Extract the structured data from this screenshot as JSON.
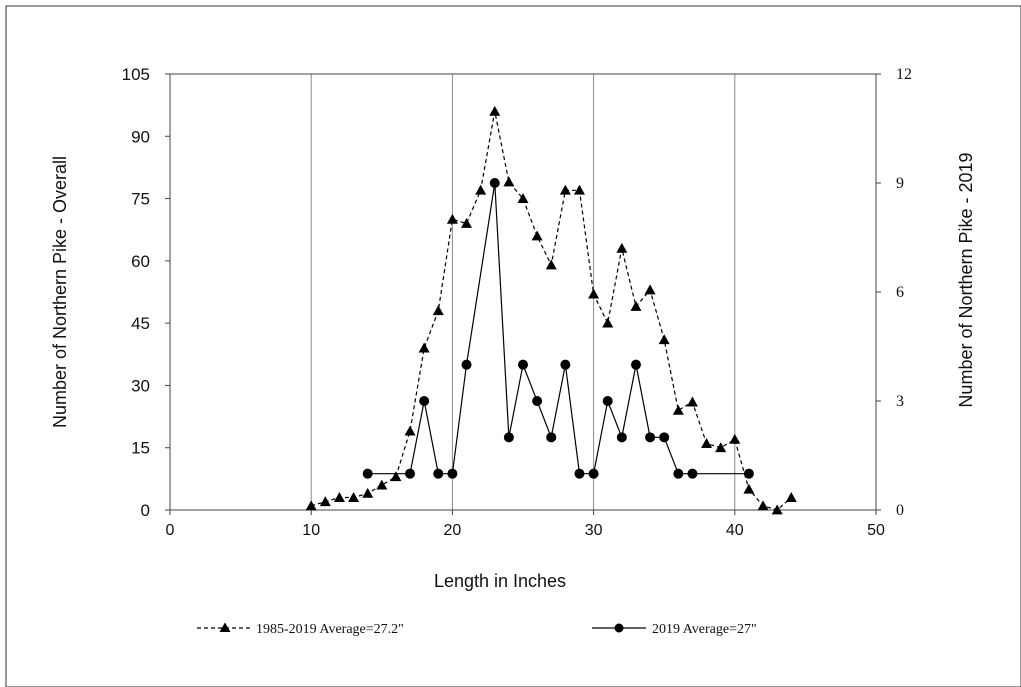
{
  "chart_data": {
    "type": "line",
    "xlabel": "Length in Inches",
    "ylabel_left": "Number of Northern Pike - Overall",
    "ylabel_right": "Number of Northern Pike - 2019",
    "xlim": [
      0,
      50
    ],
    "ylim_left": [
      0,
      105
    ],
    "ylim_right": [
      0,
      12
    ],
    "x_ticks": [
      "0",
      "10",
      "20",
      "30",
      "40",
      "50"
    ],
    "y_left_ticks": [
      "0",
      "15",
      "30",
      "45",
      "60",
      "75",
      "90",
      "105"
    ],
    "y_right_ticks": [
      "0",
      "3",
      "6",
      "9",
      "12"
    ],
    "vertical_gridlines_at": [
      10,
      20,
      30,
      40
    ],
    "legend_position": "bottom",
    "series": [
      {
        "name": "1985-2019 Average=27.2\"",
        "axis": "left",
        "marker": "triangle",
        "line_style": "dashed",
        "color": "#000000",
        "x": [
          10,
          11,
          12,
          13,
          14,
          15,
          16,
          17,
          18,
          19,
          20,
          21,
          22,
          23,
          24,
          25,
          26,
          27,
          28,
          29,
          30,
          31,
          32,
          33,
          34,
          35,
          36,
          37,
          38,
          39,
          40,
          41,
          42,
          43,
          44
        ],
        "y": [
          1,
          2,
          3,
          3,
          4,
          6,
          8,
          19,
          39,
          48,
          70,
          69,
          77,
          96,
          79,
          75,
          66,
          59,
          77,
          77,
          52,
          45,
          63,
          49,
          53,
          41,
          24,
          26,
          16,
          15,
          17,
          5,
          1,
          0,
          3
        ]
      },
      {
        "name": "2019 Average=27\"",
        "axis": "right",
        "marker": "circle",
        "line_style": "solid",
        "color": "#000000",
        "x": [
          14,
          17,
          18,
          19,
          20,
          21,
          23,
          24,
          25,
          26,
          27,
          28,
          29,
          30,
          31,
          32,
          33,
          34,
          35,
          36,
          37,
          41
        ],
        "y": [
          1,
          1,
          3,
          1,
          1,
          4,
          9,
          2,
          4,
          3,
          2,
          4,
          1,
          1,
          3,
          2,
          4,
          2,
          2,
          1,
          1,
          1
        ]
      }
    ]
  }
}
